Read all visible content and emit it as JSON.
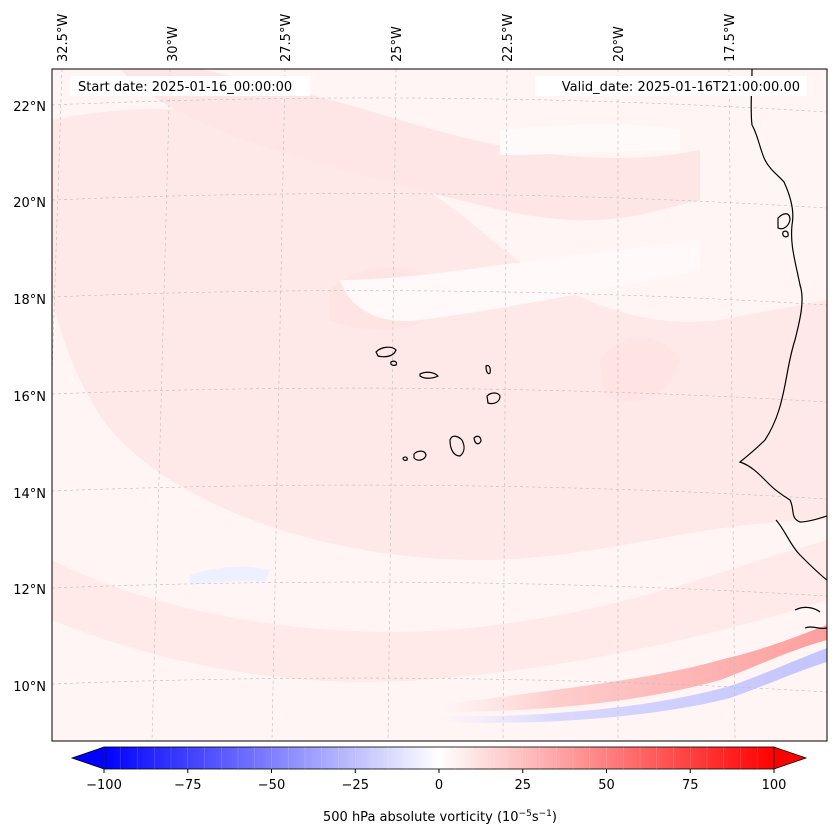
{
  "map": {
    "start_date": "Start date: 2025-01-16_00:00:00",
    "valid_date": "Valid_date: 2025-01-16T21:00:00.00",
    "lon_labels": [
      "32.5°W",
      "30°W",
      "27.5°W",
      "25°W",
      "22.5°W",
      "20°W",
      "17.5°W"
    ],
    "lat_labels": [
      "22°N",
      "20°N",
      "18°N",
      "16°N",
      "14°N",
      "12°N",
      "10°N"
    ],
    "colorbar": {
      "label": "500 hPa absolute vorticity (10",
      "label_exp": "−5",
      "label_unit_s": "s",
      "label_exp2": "−1",
      "label_close": ")",
      "ticks": [
        "−100",
        "−75",
        "−50",
        "−25",
        "0",
        "25",
        "50",
        "75",
        "100"
      ],
      "min": -100,
      "max": 100,
      "colors": {
        "negative": "#0000ff",
        "zero": "#ffffff",
        "positive": "#ff0000"
      }
    },
    "coastline_color": "#000000"
  }
}
